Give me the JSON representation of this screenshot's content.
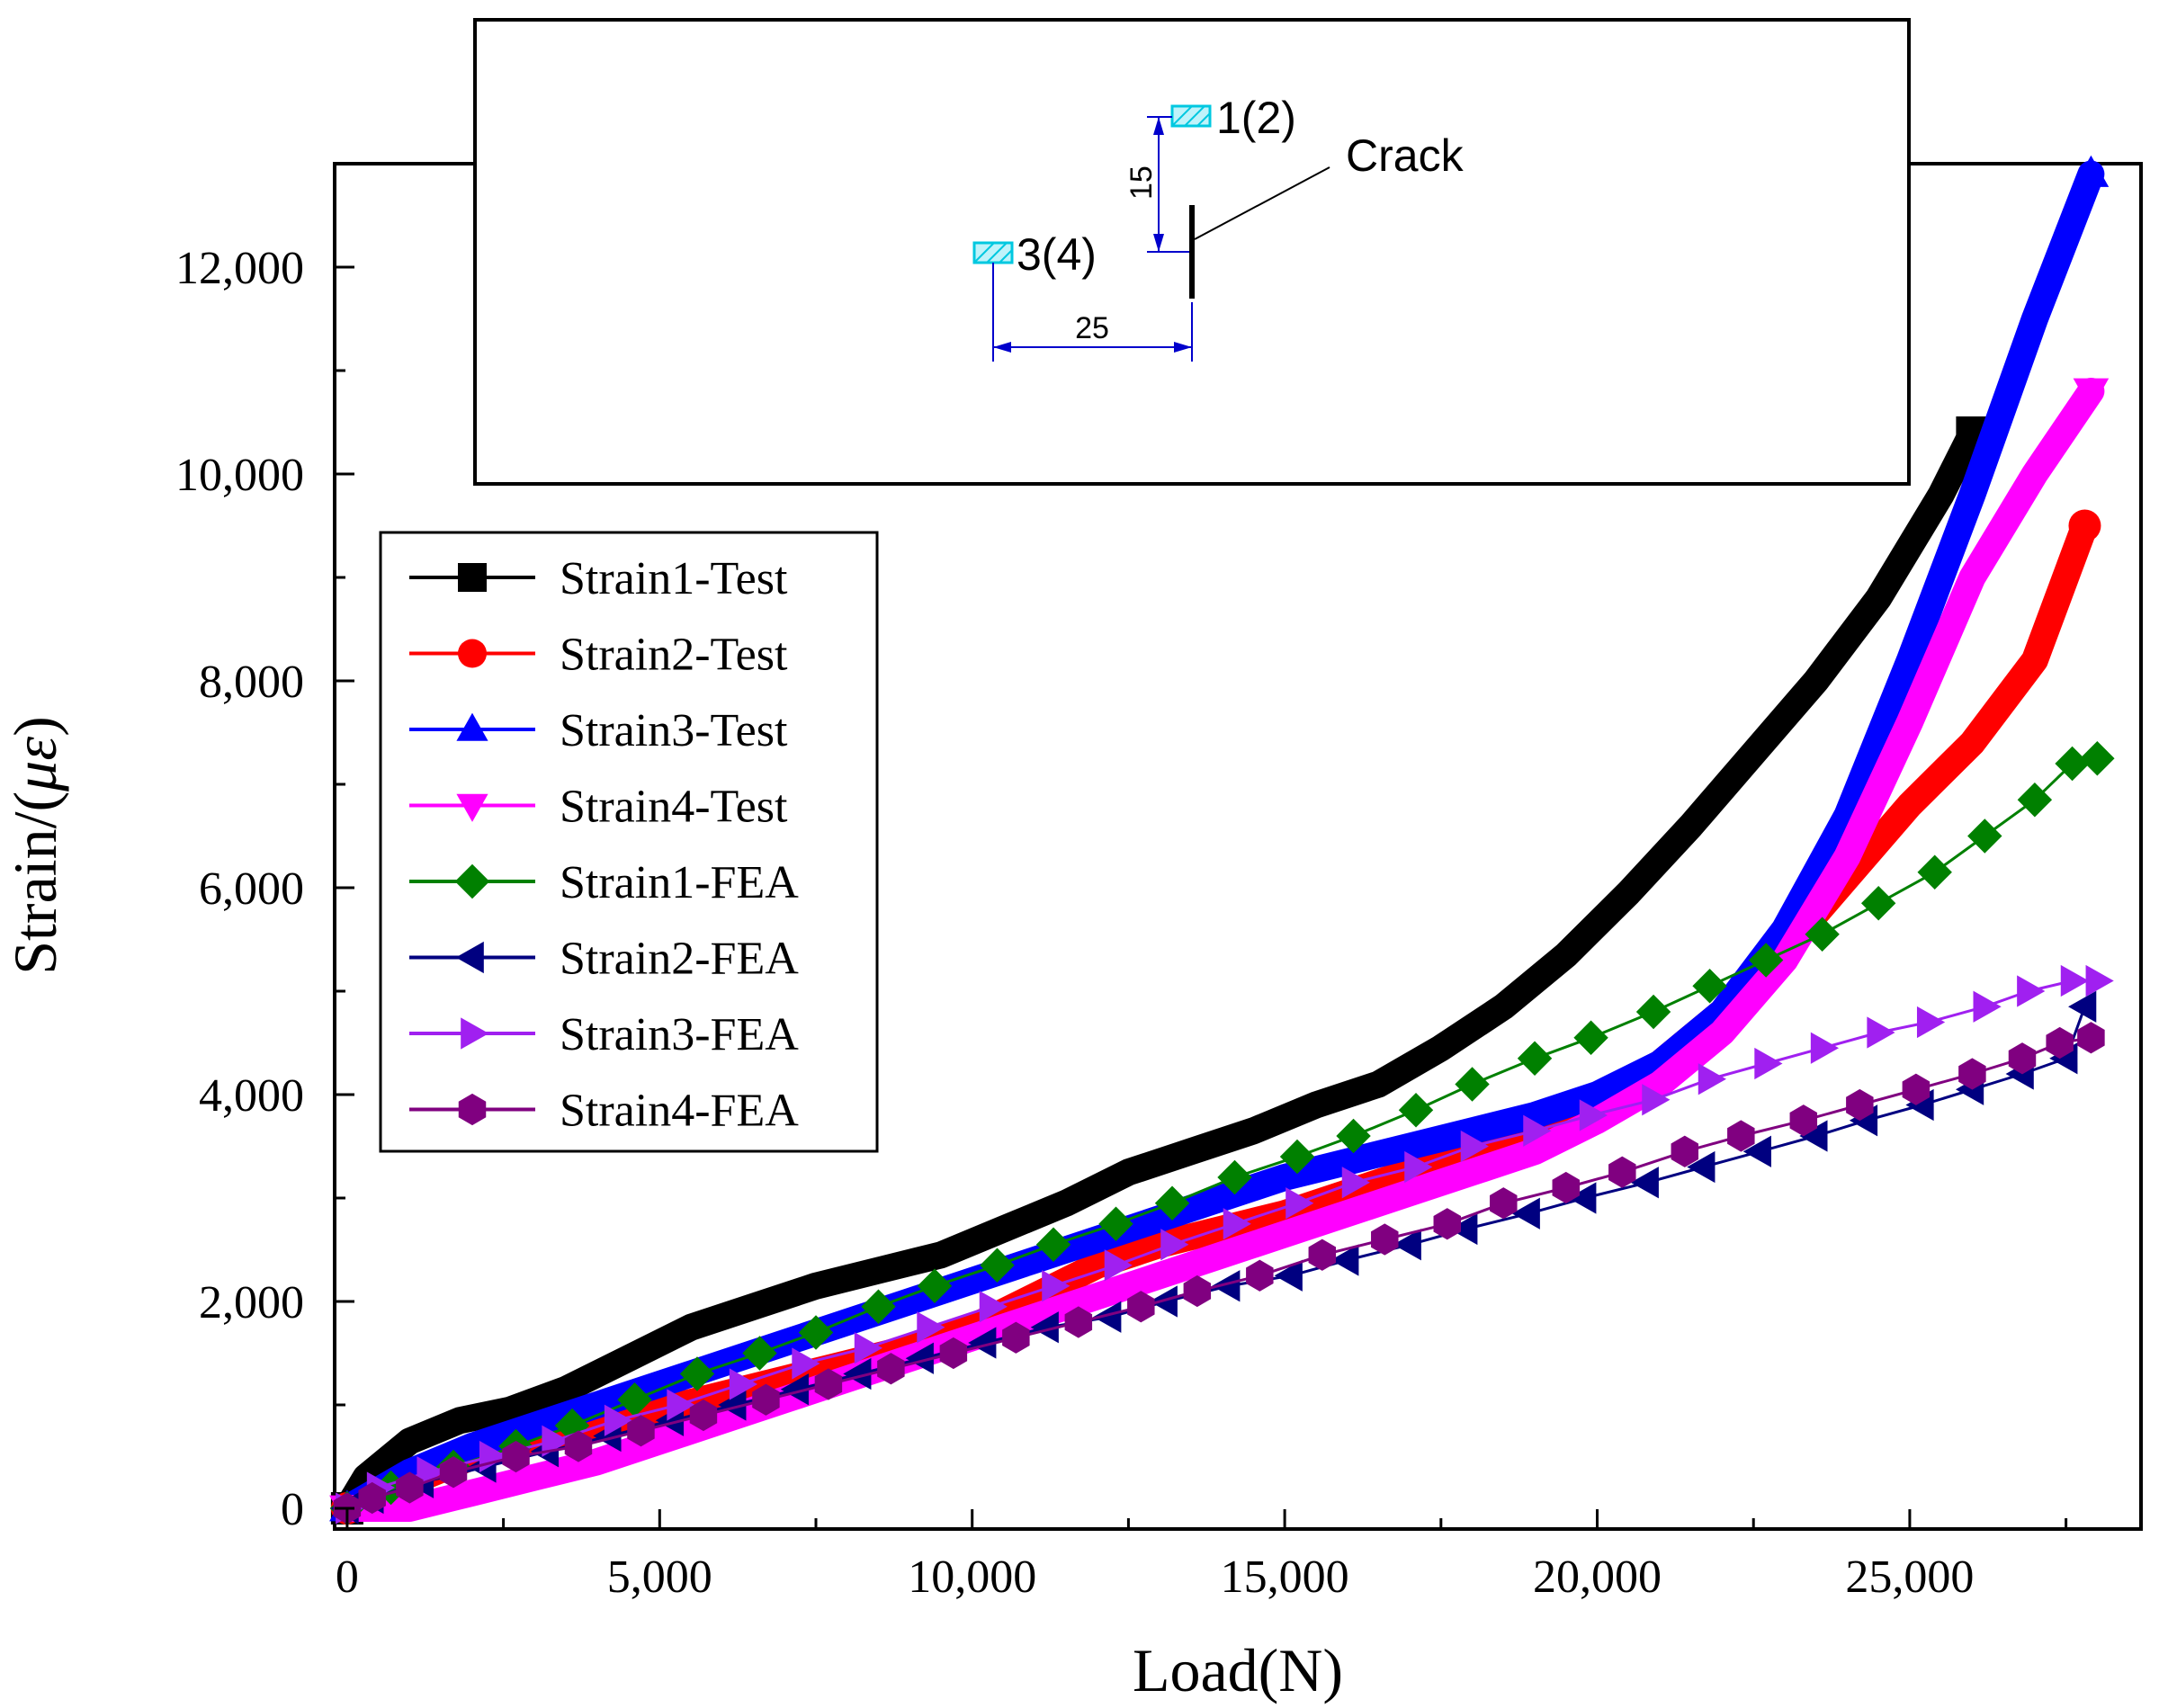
{
  "chart_data": {
    "type": "line",
    "title": "",
    "xlabel": "Load(N)",
    "ylabel_prefix": "Strain/(",
    "ylabel_symbol": "με",
    "ylabel_suffix": ")",
    "xlim": [
      -200,
      28700
    ],
    "ylim": [
      -200,
      13000
    ],
    "xticks": [
      0,
      5000,
      10000,
      15000,
      20000,
      25000
    ],
    "xtick_labels": [
      "0",
      "5,000",
      "10,000",
      "15,000",
      "20,000",
      "25,000"
    ],
    "yticks": [
      0,
      2000,
      4000,
      6000,
      8000,
      10000,
      12000
    ],
    "ytick_labels": [
      "0",
      "2,000",
      "4,000",
      "6,000",
      "8,000",
      "10,000",
      "12,000"
    ],
    "legend_position": "middle-left",
    "series": [
      {
        "name": "Strain1-Test",
        "color": "#000000",
        "marker": "square",
        "style": "thick",
        "x": [
          0,
          300,
          1000,
          1800,
          2600,
          3500,
          4500,
          5500,
          6500,
          7500,
          8500,
          9500,
          10500,
          11500,
          12500,
          13500,
          14500,
          15500,
          16500,
          17500,
          18500,
          19500,
          20500,
          21500,
          22500,
          23500,
          24500,
          25500,
          26000
        ],
        "y": [
          0,
          300,
          650,
          850,
          950,
          1150,
          1450,
          1750,
          1950,
          2150,
          2300,
          2450,
          2700,
          2950,
          3250,
          3450,
          3650,
          3900,
          4100,
          4450,
          4850,
          5350,
          5950,
          6600,
          7300,
          8000,
          8800,
          9800,
          10400
        ]
      },
      {
        "name": "Strain2-Test",
        "color": "#ff0000",
        "marker": "circle",
        "style": "thick",
        "x": [
          0,
          1000,
          2000,
          3000,
          4000,
          5000,
          6000,
          7000,
          8000,
          9000,
          10000,
          11000,
          12000,
          13000,
          14000,
          15000,
          16000,
          17000,
          18000,
          19000,
          20000,
          21000,
          22000,
          23000,
          24000,
          25000,
          26000,
          27000,
          27800
        ],
        "y": [
          0,
          250,
          500,
          650,
          800,
          950,
          1100,
          1250,
          1400,
          1550,
          1750,
          2050,
          2350,
          2550,
          2700,
          2850,
          3050,
          3250,
          3450,
          3700,
          3950,
          4300,
          4800,
          5400,
          6100,
          6800,
          7400,
          8200,
          9500
        ]
      },
      {
        "name": "Strain3-Test",
        "color": "#0000ff",
        "marker": "triangle-up",
        "style": "thick",
        "x": [
          0,
          1000,
          2000,
          3000,
          4000,
          5000,
          6000,
          7000,
          8000,
          9000,
          10000,
          11000,
          12000,
          13000,
          14000,
          15000,
          16000,
          17000,
          18000,
          19000,
          20000,
          21000,
          22000,
          23000,
          24000,
          25000,
          26000,
          27000,
          27900
        ],
        "y": [
          0,
          350,
          600,
          800,
          1000,
          1200,
          1400,
          1600,
          1800,
          2000,
          2200,
          2400,
          2600,
          2800,
          3000,
          3200,
          3350,
          3500,
          3650,
          3800,
          4000,
          4300,
          4800,
          5600,
          6700,
          8200,
          9800,
          11500,
          12900
        ]
      },
      {
        "name": "Strain4-Test",
        "color": "#ff00ff",
        "marker": "triangle-down",
        "style": "thick",
        "x": [
          0,
          1000,
          2000,
          3000,
          4000,
          5000,
          6000,
          7000,
          8000,
          9000,
          10000,
          11000,
          12000,
          13000,
          14000,
          15000,
          16000,
          17000,
          18000,
          19000,
          20000,
          21000,
          22000,
          23000,
          24000,
          25000,
          26000,
          27000,
          27900
        ],
        "y": [
          0,
          0,
          150,
          300,
          450,
          650,
          850,
          1050,
          1250,
          1450,
          1650,
          1850,
          2050,
          2250,
          2450,
          2650,
          2850,
          3050,
          3250,
          3450,
          3750,
          4100,
          4600,
          5300,
          6300,
          7600,
          9000,
          10000,
          10800
        ]
      },
      {
        "name": "Strain1-FEA",
        "color": "#008000",
        "marker": "diamond",
        "style": "thin",
        "x": [
          0,
          700,
          1700,
          2700,
          3600,
          4600,
          5600,
          6600,
          7500,
          8500,
          9400,
          10400,
          11300,
          12300,
          13200,
          14200,
          15200,
          16100,
          17100,
          18000,
          19000,
          19900,
          20900,
          21800,
          22700,
          23600,
          24500,
          25400,
          26200,
          27000,
          27600,
          28000
        ],
        "y": [
          0,
          200,
          400,
          600,
          800,
          1050,
          1300,
          1500,
          1700,
          1950,
          2150,
          2350,
          2550,
          2750,
          2950,
          3200,
          3400,
          3600,
          3850,
          4100,
          4350,
          4550,
          4800,
          5050,
          5300,
          5550,
          5850,
          6150,
          6500,
          6850,
          7200,
          7250
        ]
      },
      {
        "name": "Strain2-FEA",
        "color": "#000080",
        "marker": "triangle-left",
        "style": "thin",
        "x": [
          0,
          400,
          1200,
          2200,
          3200,
          4200,
          5200,
          6200,
          7200,
          8200,
          9200,
          10200,
          11200,
          12200,
          13100,
          14100,
          15100,
          16000,
          17000,
          17900,
          18900,
          19800,
          20800,
          21700,
          22600,
          23500,
          24300,
          25200,
          26000,
          26800,
          27500,
          27800
        ],
        "y": [
          0,
          100,
          250,
          400,
          550,
          700,
          850,
          1000,
          1150,
          1300,
          1450,
          1600,
          1750,
          1850,
          2000,
          2150,
          2250,
          2400,
          2550,
          2700,
          2850,
          3000,
          3150,
          3300,
          3450,
          3600,
          3750,
          3900,
          4050,
          4200,
          4350,
          4850
        ]
      },
      {
        "name": "Strain3-FEA",
        "color": "#a020f0",
        "marker": "triangle-right",
        "style": "thin",
        "x": [
          0,
          500,
          1300,
          2300,
          3300,
          4300,
          5300,
          6300,
          7300,
          8300,
          9300,
          10300,
          11300,
          12300,
          13200,
          14200,
          15200,
          16100,
          17100,
          18000,
          19000,
          19900,
          20900,
          21800,
          22700,
          23600,
          24500,
          25300,
          26200,
          26900,
          27600,
          28000
        ],
        "y": [
          0,
          200,
          350,
          500,
          650,
          850,
          1000,
          1200,
          1400,
          1550,
          1750,
          1950,
          2150,
          2350,
          2550,
          2750,
          2950,
          3150,
          3300,
          3500,
          3650,
          3800,
          3950,
          4150,
          4300,
          4450,
          4600,
          4700,
          4850,
          5000,
          5100,
          5100
        ]
      },
      {
        "name": "Strain4-FEA",
        "color": "#800080",
        "marker": "hexagon",
        "style": "thin",
        "x": [
          0,
          400,
          1000,
          1700,
          2700,
          3700,
          4700,
          5700,
          6700,
          7700,
          8700,
          9700,
          10700,
          11700,
          12700,
          13600,
          14600,
          15600,
          16600,
          17600,
          18500,
          19500,
          20400,
          21400,
          22300,
          23300,
          24200,
          25100,
          26000,
          26800,
          27400,
          27900
        ],
        "y": [
          0,
          100,
          200,
          350,
          500,
          600,
          750,
          900,
          1050,
          1200,
          1350,
          1500,
          1650,
          1800,
          1950,
          2100,
          2250,
          2450,
          2600,
          2750,
          2950,
          3100,
          3250,
          3450,
          3600,
          3750,
          3900,
          4050,
          4200,
          4350,
          4500,
          4550
        ]
      }
    ]
  },
  "inset": {
    "gauge_a_label": "1(2)",
    "gauge_b_label": "3(4)",
    "crack_label": "Crack",
    "dim_vertical": "15",
    "dim_horizontal": "25",
    "gauge_color": "#00c8e0",
    "dim_color": "#0000cc"
  }
}
